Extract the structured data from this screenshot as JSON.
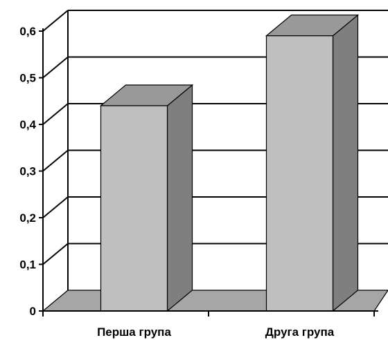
{
  "chart_data": {
    "type": "bar",
    "style": "3d-column",
    "categories": [
      "Перша група",
      "Друга група"
    ],
    "values": [
      0.44,
      0.59
    ],
    "ylim": [
      0,
      0.6
    ],
    "yticks": [
      "0",
      "0,1",
      "0,2",
      "0,3",
      "0,4",
      "0,5",
      "0,6"
    ],
    "grid": true,
    "legend": "none",
    "colors": {
      "front": "#bfbfbf",
      "side": "#7f7f7f",
      "top": "#999999",
      "floor": "#a6a6a6",
      "grid": "#000000"
    }
  }
}
